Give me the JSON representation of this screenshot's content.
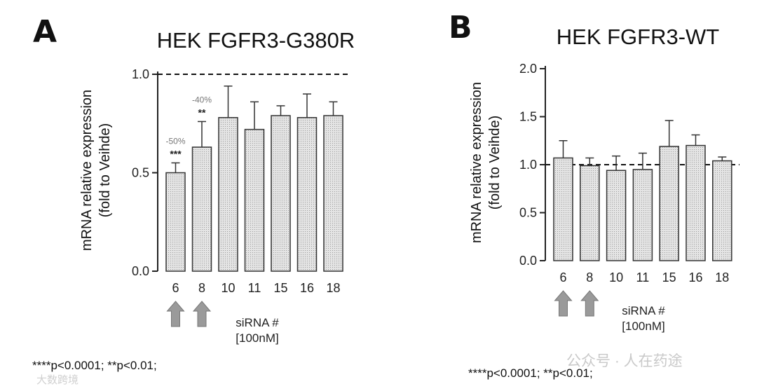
{
  "chart_data": [
    {
      "type": "bar",
      "panel_label": "A",
      "title": "HEK FGFR3-G380R",
      "ylabel_lines": [
        "mRNA relative expression",
        "(fold to Veihde)"
      ],
      "xlabel_lines": [
        "siRNA #",
        "[100nM]"
      ],
      "categories": [
        "6",
        "8",
        "10",
        "11",
        "15",
        "16",
        "18"
      ],
      "values": [
        0.5,
        0.63,
        0.78,
        0.72,
        0.79,
        0.78,
        0.79
      ],
      "errors": [
        0.05,
        0.13,
        0.16,
        0.14,
        0.05,
        0.12,
        0.07
      ],
      "ylim": [
        0,
        1.0
      ],
      "yticks": [
        "0.0",
        "0.5",
        "1.0"
      ],
      "reference_line": 1.0,
      "significance": [
        "***",
        "**",
        "",
        "",
        "",
        "",
        ""
      ],
      "percent_change": [
        "-50%",
        "-40%",
        "",
        "",
        "",
        "",
        ""
      ],
      "arrow_categories": [
        "6",
        "8"
      ],
      "grid": false
    },
    {
      "type": "bar",
      "panel_label": "B",
      "title": "HEK FGFR3-WT",
      "ylabel_lines": [
        "mRNA relative expression",
        "(fold to Veihde)"
      ],
      "xlabel_lines": [
        "siRNA #",
        "[100nM]"
      ],
      "categories": [
        "6",
        "8",
        "10",
        "11",
        "15",
        "16",
        "18"
      ],
      "values": [
        1.07,
        0.99,
        0.94,
        0.95,
        1.19,
        1.2,
        1.04
      ],
      "errors": [
        0.18,
        0.08,
        0.15,
        0.17,
        0.27,
        0.11,
        0.04
      ],
      "ylim": [
        0,
        2.0
      ],
      "yticks": [
        "0.0",
        "0.5",
        "1.0",
        "1.5",
        "2.0"
      ],
      "reference_line": 1.0,
      "arrow_categories": [
        "6",
        "8"
      ],
      "grid": false
    }
  ],
  "footnotes": {
    "a": "****p<0.0001; **p<0.01;",
    "b": "****p<0.0001; **p<0.01;"
  },
  "watermarks": {
    "right": "公众号 · 人在药途",
    "left": "大数跨境"
  },
  "colors": {
    "bar_fill": "#dedede",
    "bar_stroke": "#333333",
    "arrow_fill": "#9a9a9a",
    "axis": "#222222"
  }
}
